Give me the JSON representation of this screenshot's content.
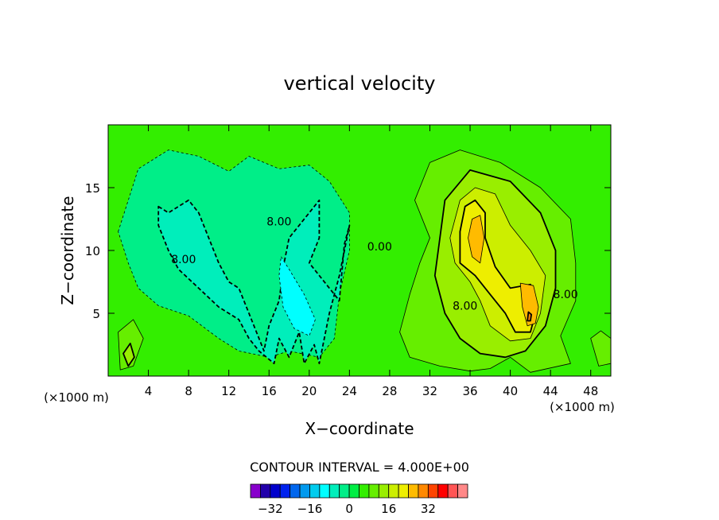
{
  "chart_data": {
    "type": "heatmap",
    "title": "vertical velocity",
    "xlabel": "X−coordinate",
    "ylabel": "Z−coordinate",
    "x_unit_left": "(×1000 m)",
    "x_unit_right": "(×1000 m)",
    "xlim": [
      0,
      50
    ],
    "ylim": [
      0,
      20
    ],
    "x_ticks": [
      4,
      8,
      12,
      16,
      20,
      24,
      28,
      32,
      36,
      40,
      44,
      48
    ],
    "x_tick_labels": [
      "4",
      "8",
      "12",
      "16",
      "20",
      "24",
      "28",
      "32",
      "36",
      "40",
      "44",
      "48"
    ],
    "y_ticks": [
      5,
      10,
      15
    ],
    "y_tick_labels": [
      "5",
      "10",
      "15"
    ],
    "contour_interval_text": "CONTOUR INTERVAL = 4.000E+00",
    "contour_labels": [
      {
        "text": "8.00",
        "x": 17,
        "y": 12,
        "color": "#000"
      },
      {
        "text": "8.00",
        "x": 7.5,
        "y": 9,
        "color": "#000"
      },
      {
        "text": "0.00",
        "x": 27,
        "y": 10,
        "color": "#000"
      },
      {
        "text": "8.00",
        "x": 35.5,
        "y": 5.3,
        "color": "#000"
      },
      {
        "text": "8.00",
        "x": 45.5,
        "y": 6.2,
        "color": "#000"
      }
    ],
    "filled_regions": [
      {
        "level": 0,
        "points": [
          [
            0,
            0
          ],
          [
            50,
            0
          ],
          [
            50,
            20
          ],
          [
            0,
            20
          ]
        ],
        "color": "#33ee00"
      },
      {
        "level": -4,
        "points": [
          [
            1,
            11.5
          ],
          [
            2,
            14
          ],
          [
            3,
            16.5
          ],
          [
            6,
            18
          ],
          [
            9,
            17.5
          ],
          [
            12,
            16.3
          ],
          [
            14,
            17.5
          ],
          [
            17,
            16.5
          ],
          [
            20,
            16.8
          ],
          [
            22,
            15.5
          ],
          [
            24,
            13
          ],
          [
            24,
            10
          ],
          [
            23,
            6.5
          ],
          [
            22.5,
            3
          ],
          [
            21,
            1.5
          ],
          [
            18,
            2
          ],
          [
            16,
            1.5
          ],
          [
            13,
            2
          ],
          [
            11,
            3
          ],
          [
            8,
            4.8
          ],
          [
            5,
            5.6
          ],
          [
            3,
            7
          ],
          [
            2,
            9
          ]
        ],
        "color": "#00ee88"
      },
      {
        "level": -8,
        "points": [
          [
            5,
            13.5
          ],
          [
            6,
            13
          ],
          [
            7,
            13.5
          ],
          [
            8,
            14
          ],
          [
            9,
            13
          ],
          [
            10,
            11
          ],
          [
            11,
            9
          ],
          [
            12,
            7.5
          ],
          [
            13,
            7
          ],
          [
            14,
            5
          ],
          [
            15,
            3
          ],
          [
            15.5,
            2
          ],
          [
            16,
            4
          ],
          [
            17,
            6
          ],
          [
            17.5,
            9
          ],
          [
            18,
            11
          ],
          [
            20,
            13
          ],
          [
            21,
            14
          ],
          [
            21,
            11
          ],
          [
            20,
            9
          ],
          [
            22,
            7
          ],
          [
            23,
            6
          ],
          [
            23.5,
            10.5
          ],
          [
            24,
            12
          ],
          [
            23,
            8
          ],
          [
            22,
            5
          ],
          [
            21,
            1
          ],
          [
            20.5,
            2.5
          ],
          [
            19.5,
            1
          ],
          [
            19,
            3.5
          ],
          [
            18,
            1.5
          ],
          [
            17,
            3
          ],
          [
            16.5,
            1
          ],
          [
            15,
            2
          ],
          [
            14,
            3
          ],
          [
            13,
            4.5
          ],
          [
            11,
            5.5
          ],
          [
            9,
            7
          ],
          [
            7,
            8.5
          ],
          [
            6,
            10
          ],
          [
            5,
            12
          ]
        ],
        "color": "#00eebb"
      },
      {
        "level": -12,
        "points": [
          [
            17.2,
            9.5
          ],
          [
            18,
            8.5
          ],
          [
            19.5,
            6.5
          ],
          [
            20.6,
            4.5
          ],
          [
            20,
            3.2
          ],
          [
            18.5,
            3.8
          ],
          [
            17.4,
            5.5
          ],
          [
            17,
            8
          ]
        ],
        "color": "#00ffff"
      },
      {
        "level": 4,
        "points": [
          [
            32,
            11
          ],
          [
            30.5,
            14
          ],
          [
            32,
            17
          ],
          [
            35,
            18
          ],
          [
            39,
            17
          ],
          [
            43,
            15
          ],
          [
            46,
            12.5
          ],
          [
            46.5,
            9
          ],
          [
            46.5,
            6
          ],
          [
            45,
            3.2
          ],
          [
            46,
            1
          ],
          [
            42,
            0.3
          ],
          [
            40,
            1.5
          ],
          [
            38,
            0.6
          ],
          [
            36,
            0.4
          ],
          [
            33,
            0.8
          ],
          [
            30,
            1.5
          ],
          [
            29,
            3.5
          ],
          [
            30,
            6.5
          ],
          [
            31,
            9
          ]
        ],
        "color": "#66ee00"
      },
      {
        "level": 8,
        "points": [
          [
            33,
            11
          ],
          [
            33.5,
            14
          ],
          [
            36,
            16.4
          ],
          [
            40,
            15.5
          ],
          [
            43,
            13
          ],
          [
            44.5,
            10
          ],
          [
            44.5,
            7
          ],
          [
            43.5,
            4
          ],
          [
            41.5,
            2
          ],
          [
            39.5,
            1.5
          ],
          [
            37,
            1.8
          ],
          [
            35,
            3
          ],
          [
            33.5,
            5
          ],
          [
            32.5,
            8
          ]
        ],
        "color": "#99ee00"
      },
      {
        "level": 12,
        "points": [
          [
            34,
            11
          ],
          [
            35,
            14
          ],
          [
            36.5,
            15
          ],
          [
            38.5,
            14.5
          ],
          [
            40,
            12
          ],
          [
            42,
            10
          ],
          [
            43.5,
            8
          ],
          [
            43,
            5
          ],
          [
            42,
            3
          ],
          [
            40,
            2.8
          ],
          [
            38,
            4
          ],
          [
            37,
            6
          ],
          [
            36,
            7.5
          ],
          [
            34.5,
            9
          ]
        ],
        "color": "#ccee00"
      },
      {
        "level": 16,
        "points": [
          [
            35,
            11.5
          ],
          [
            35.5,
            13.5
          ],
          [
            36.5,
            14
          ],
          [
            37.5,
            13
          ],
          [
            37.5,
            11
          ],
          [
            38.5,
            8.7
          ],
          [
            40,
            7
          ],
          [
            42,
            7.3
          ],
          [
            42.5,
            5
          ],
          [
            42,
            3.5
          ],
          [
            40.5,
            3.5
          ],
          [
            39.5,
            5
          ],
          [
            38,
            6.5
          ],
          [
            36.5,
            8
          ],
          [
            35,
            9
          ]
        ],
        "color": "#eeee00"
      },
      {
        "level": 20,
        "points": [
          [
            35.8,
            11
          ],
          [
            36.2,
            12.5
          ],
          [
            37,
            12.8
          ],
          [
            37.4,
            11
          ],
          [
            37,
            9
          ],
          [
            36.2,
            9.5
          ]
        ],
        "color": "#ffbb00"
      },
      {
        "level": 20,
        "points": [
          [
            41,
            7.4
          ],
          [
            42.3,
            7.2
          ],
          [
            42.8,
            5.5
          ],
          [
            42.5,
            4.2
          ],
          [
            41.7,
            4
          ],
          [
            41.2,
            5.5
          ]
        ],
        "color": "#ffbb00"
      },
      {
        "level": 24,
        "points": [
          [
            41.8,
            5.1
          ],
          [
            42.1,
            4.9
          ],
          [
            42,
            4.4
          ],
          [
            41.7,
            4.4
          ]
        ],
        "color": "#ff8800"
      },
      {
        "level": 4,
        "points": [
          [
            1,
            3.5
          ],
          [
            2.5,
            4.5
          ],
          [
            3.5,
            3
          ],
          [
            2.5,
            0.8
          ],
          [
            1.2,
            0.5
          ]
        ],
        "color": "#66ee00"
      },
      {
        "level": 8,
        "points": [
          [
            1.5,
            1.8
          ],
          [
            2.2,
            2.6
          ],
          [
            2.6,
            1.5
          ],
          [
            2.0,
            0.8
          ]
        ],
        "color": "#99ee00"
      },
      {
        "level": 4,
        "points": [
          [
            48,
            3
          ],
          [
            49,
            3.6
          ],
          [
            50,
            3
          ],
          [
            50,
            1
          ],
          [
            48.8,
            0.8
          ]
        ],
        "color": "#66ee00"
      }
    ],
    "colorbar": {
      "colors": [
        "#8800cc",
        "#2200aa",
        "#0000cc",
        "#0022ee",
        "#0066ee",
        "#0099ee",
        "#00ccee",
        "#00ffff",
        "#00eebb",
        "#00ee88",
        "#00ee44",
        "#33ee00",
        "#66ee00",
        "#99ee00",
        "#ccee00",
        "#eeee00",
        "#ffbb00",
        "#ff8800",
        "#ff4400",
        "#ff0000",
        "#ff5555",
        "#ff8888"
      ],
      "tick_labels": [
        "−32",
        "−16",
        "0",
        "16",
        "32"
      ],
      "tick_values": [
        -32,
        -16,
        0,
        16,
        32
      ],
      "min": -40,
      "max": 48
    }
  }
}
